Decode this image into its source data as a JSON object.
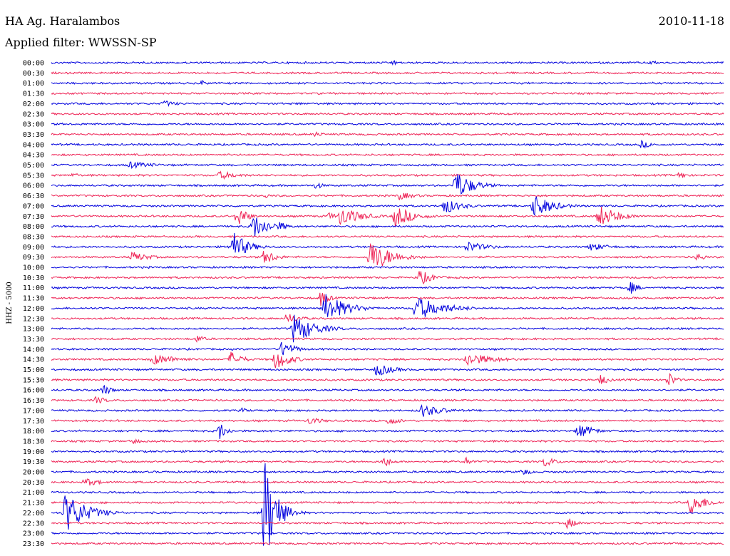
{
  "header": {
    "station": "HA Ag. Haralambos",
    "date": "2010-11-18",
    "filter": "Applied filter: WWSSN-SP"
  },
  "colors": {
    "even_trace": "#0000dd",
    "odd_trace": "#ee2255",
    "text": "#000000",
    "background": "#ffffff"
  },
  "chart_data": {
    "type": "line",
    "ylabel": "HHZ - 5000",
    "row_labels": [
      "00:00",
      "00:30",
      "01:00",
      "01:30",
      "02:00",
      "02:30",
      "03:00",
      "03:30",
      "04:00",
      "04:30",
      "05:00",
      "05:30",
      "06:00",
      "06:30",
      "07:00",
      "07:30",
      "08:00",
      "08:30",
      "09:00",
      "09:30",
      "10:00",
      "10:30",
      "11:00",
      "11:30",
      "12:00",
      "12:30",
      "13:00",
      "13:30",
      "14:00",
      "14:30",
      "15:00",
      "15:30",
      "16:00",
      "16:30",
      "17:00",
      "17:30",
      "18:00",
      "18:30",
      "19:00",
      "19:30",
      "20:00",
      "20:30",
      "21:00",
      "21:30",
      "22:00",
      "22:30",
      "23:00",
      "23:30"
    ],
    "x_range_minutes": [
      0,
      30
    ],
    "events": [
      {
        "row": 0,
        "t": 15.2,
        "amp": 4,
        "dur": 0.6
      },
      {
        "row": 0,
        "t": 26.7,
        "amp": 4,
        "dur": 0.6
      },
      {
        "row": 2,
        "t": 6.7,
        "amp": 5,
        "dur": 0.4
      },
      {
        "row": 4,
        "t": 5.0,
        "amp": 5,
        "dur": 1.0
      },
      {
        "row": 4,
        "t": 11.0,
        "amp": 3,
        "dur": 0.5
      },
      {
        "row": 7,
        "t": 11.8,
        "amp": 5,
        "dur": 0.5
      },
      {
        "row": 8,
        "t": 26.3,
        "amp": 6,
        "dur": 0.8
      },
      {
        "row": 10,
        "t": 3.5,
        "amp": 5,
        "dur": 2.0
      },
      {
        "row": 11,
        "t": 1.0,
        "amp": 5,
        "dur": 0.4
      },
      {
        "row": 11,
        "t": 7.5,
        "amp": 6,
        "dur": 1.5
      },
      {
        "row": 11,
        "t": 28.0,
        "amp": 6,
        "dur": 0.6
      },
      {
        "row": 12,
        "t": 18.0,
        "amp": 22,
        "dur": 1.2
      },
      {
        "row": 12,
        "t": 11.8,
        "amp": 6,
        "dur": 0.5
      },
      {
        "row": 13,
        "t": 15.5,
        "amp": 6,
        "dur": 1.2
      },
      {
        "row": 13,
        "t": 9.5,
        "amp": 5,
        "dur": 0.4
      },
      {
        "row": 14,
        "t": 17.5,
        "amp": 12,
        "dur": 1.2
      },
      {
        "row": 14,
        "t": 21.5,
        "amp": 18,
        "dur": 1.3
      },
      {
        "row": 15,
        "t": 8.3,
        "amp": 18,
        "dur": 0.6
      },
      {
        "row": 15,
        "t": 12.4,
        "amp": 6,
        "dur": 0.6
      },
      {
        "row": 15,
        "t": 12.9,
        "amp": 15,
        "dur": 1.4
      },
      {
        "row": 15,
        "t": 15.3,
        "amp": 16,
        "dur": 1.3
      },
      {
        "row": 15,
        "t": 24.4,
        "amp": 17,
        "dur": 1.3
      },
      {
        "row": 16,
        "t": 9.0,
        "amp": 18,
        "dur": 1.2
      },
      {
        "row": 16,
        "t": 10.2,
        "amp": 7,
        "dur": 0.6
      },
      {
        "row": 18,
        "t": 8.0,
        "amp": 26,
        "dur": 1.0
      },
      {
        "row": 18,
        "t": 18.5,
        "amp": 8,
        "dur": 1.5
      },
      {
        "row": 18,
        "t": 24.0,
        "amp": 6,
        "dur": 1.5
      },
      {
        "row": 19,
        "t": 3.6,
        "amp": 8,
        "dur": 1.2
      },
      {
        "row": 19,
        "t": 9.5,
        "amp": 12,
        "dur": 0.8
      },
      {
        "row": 19,
        "t": 14.2,
        "amp": 24,
        "dur": 1.5
      },
      {
        "row": 19,
        "t": 28.8,
        "amp": 7,
        "dur": 0.6
      },
      {
        "row": 21,
        "t": 16.4,
        "amp": 12,
        "dur": 1.0
      },
      {
        "row": 22,
        "t": 25.8,
        "amp": 10,
        "dur": 0.5
      },
      {
        "row": 23,
        "t": 12.0,
        "amp": 12,
        "dur": 0.6
      },
      {
        "row": 24,
        "t": 12.2,
        "amp": 22,
        "dur": 1.5
      },
      {
        "row": 24,
        "t": 16.2,
        "amp": 18,
        "dur": 2.0
      },
      {
        "row": 25,
        "t": 10.5,
        "amp": 8,
        "dur": 1.0
      },
      {
        "row": 26,
        "t": 10.8,
        "amp": 22,
        "dur": 1.5
      },
      {
        "row": 27,
        "t": 6.5,
        "amp": 6,
        "dur": 0.6
      },
      {
        "row": 28,
        "t": 10.3,
        "amp": 14,
        "dur": 0.8
      },
      {
        "row": 29,
        "t": 4.5,
        "amp": 8,
        "dur": 2.0
      },
      {
        "row": 29,
        "t": 8.0,
        "amp": 12,
        "dur": 0.8
      },
      {
        "row": 29,
        "t": 10.0,
        "amp": 16,
        "dur": 1.0
      },
      {
        "row": 29,
        "t": 18.5,
        "amp": 10,
        "dur": 2.0
      },
      {
        "row": 30,
        "t": 14.5,
        "amp": 10,
        "dur": 1.2
      },
      {
        "row": 31,
        "t": 24.5,
        "amp": 8,
        "dur": 0.6
      },
      {
        "row": 31,
        "t": 27.5,
        "amp": 12,
        "dur": 0.5
      },
      {
        "row": 32,
        "t": 2.3,
        "amp": 9,
        "dur": 0.6
      },
      {
        "row": 33,
        "t": 2.0,
        "amp": 6,
        "dur": 0.8
      },
      {
        "row": 34,
        "t": 16.5,
        "amp": 10,
        "dur": 1.5
      },
      {
        "row": 34,
        "t": 8.5,
        "amp": 4,
        "dur": 0.6
      },
      {
        "row": 35,
        "t": 11.5,
        "amp": 6,
        "dur": 1.0
      },
      {
        "row": 35,
        "t": 15.0,
        "amp": 6,
        "dur": 1.0
      },
      {
        "row": 36,
        "t": 7.5,
        "amp": 14,
        "dur": 0.5
      },
      {
        "row": 36,
        "t": 23.5,
        "amp": 12,
        "dur": 1.0
      },
      {
        "row": 37,
        "t": 3.6,
        "amp": 5,
        "dur": 0.6
      },
      {
        "row": 39,
        "t": 14.8,
        "amp": 9,
        "dur": 0.6
      },
      {
        "row": 39,
        "t": 18.5,
        "amp": 6,
        "dur": 0.5
      },
      {
        "row": 39,
        "t": 22.0,
        "amp": 8,
        "dur": 0.8
      },
      {
        "row": 40,
        "t": 21.0,
        "amp": 6,
        "dur": 0.6
      },
      {
        "row": 41,
        "t": 1.5,
        "amp": 7,
        "dur": 1.0
      },
      {
        "row": 43,
        "t": 28.5,
        "amp": 18,
        "dur": 1.0
      },
      {
        "row": 44,
        "t": 0.6,
        "amp": 30,
        "dur": 1.5
      },
      {
        "row": 44,
        "t": 9.5,
        "amp": 80,
        "dur": 0.8
      },
      {
        "row": 45,
        "t": 23.0,
        "amp": 8,
        "dur": 0.8
      }
    ]
  }
}
